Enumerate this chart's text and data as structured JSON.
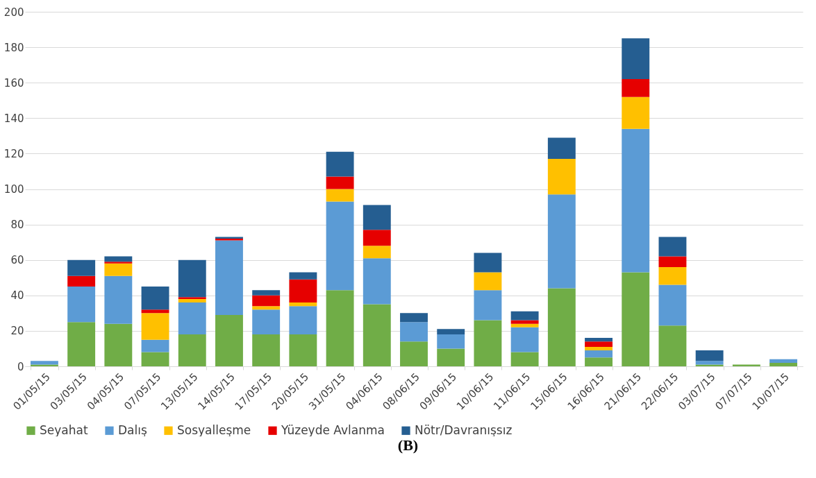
{
  "chart_data": {
    "type": "bar",
    "stacked": true,
    "categories": [
      "01/05/15",
      "03/05/15",
      "04/05/15",
      "07/05/15",
      "13/05/15",
      "14/05/15",
      "17/05/15",
      "20/05/15",
      "31/05/15",
      "04/06/15",
      "08/06/15",
      "09/06/15",
      "10/06/15",
      "11/06/15",
      "15/06/15",
      "16/06/15",
      "21/06/15",
      "22/06/15",
      "03/07/15",
      "07/07/15",
      "10/07/15"
    ],
    "series": [
      {
        "name": "Seyahat",
        "color": "#70ad47",
        "values": [
          1,
          25,
          24,
          8,
          18,
          29,
          18,
          18,
          43,
          35,
          14,
          10,
          26,
          8,
          44,
          5,
          53,
          23,
          1,
          1,
          2
        ]
      },
      {
        "name": "Dalış",
        "color": "#5b9bd5",
        "values": [
          2,
          20,
          27,
          7,
          18,
          42,
          14,
          16,
          50,
          26,
          11,
          8,
          17,
          14,
          53,
          4,
          81,
          23,
          2,
          0,
          2
        ]
      },
      {
        "name": "Sosyalleşme",
        "color": "#ffc000",
        "values": [
          0,
          0,
          7,
          15,
          2,
          0,
          2,
          2,
          7,
          7,
          0,
          0,
          10,
          2,
          20,
          2,
          18,
          10,
          0,
          0,
          0
        ]
      },
      {
        "name": "Yüzeyde Avlanma",
        "color": "#e60000",
        "values": [
          0,
          6,
          1,
          2,
          1,
          1,
          6,
          13,
          7,
          9,
          0,
          0,
          0,
          2,
          0,
          3,
          10,
          6,
          0,
          0,
          0
        ]
      },
      {
        "name": "Nötr/Davranışsız",
        "color": "#255e91",
        "values": [
          0,
          9,
          3,
          13,
          21,
          1,
          3,
          4,
          14,
          14,
          5,
          3,
          11,
          5,
          12,
          2,
          23,
          11,
          6,
          0,
          0
        ]
      }
    ],
    "ylim": [
      0,
      200
    ],
    "yticks": [
      0,
      20,
      40,
      60,
      80,
      100,
      120,
      140,
      160,
      180,
      200
    ],
    "grid": "y",
    "legend": "bottom",
    "annotations": [
      "(B)"
    ]
  }
}
